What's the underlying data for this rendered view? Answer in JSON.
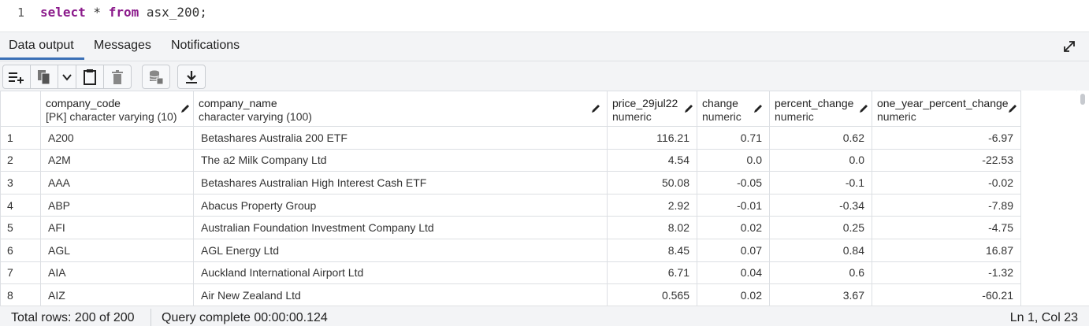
{
  "editor": {
    "line_number": "1",
    "kw_select": "select",
    "star": " * ",
    "kw_from": "from",
    "rest": " asx_200;"
  },
  "tabs": [
    {
      "label": "Data output",
      "active": true
    },
    {
      "label": "Messages",
      "active": false
    },
    {
      "label": "Notifications",
      "active": false
    }
  ],
  "columns": [
    {
      "name": "company_code",
      "type": "[PK] character varying (10)"
    },
    {
      "name": "company_name",
      "type": "character varying (100)"
    },
    {
      "name": "price_29jul22",
      "type": "numeric"
    },
    {
      "name": "change",
      "type": "numeric"
    },
    {
      "name": "percent_change",
      "type": "numeric"
    },
    {
      "name": "one_year_percent_change",
      "type": "numeric"
    }
  ],
  "rows": [
    [
      "1",
      "A200",
      "Betashares Australia 200 ETF",
      "116.21",
      "0.71",
      "0.62",
      "-6.97"
    ],
    [
      "2",
      "A2M",
      "The a2 Milk Company Ltd",
      "4.54",
      "0.0",
      "0.0",
      "-22.53"
    ],
    [
      "3",
      "AAA",
      "Betashares Australian High Interest Cash ETF",
      "50.08",
      "-0.05",
      "-0.1",
      "-0.02"
    ],
    [
      "4",
      "ABP",
      "Abacus Property Group",
      "2.92",
      "-0.01",
      "-0.34",
      "-7.89"
    ],
    [
      "5",
      "AFI",
      "Australian Foundation Investment Company Ltd",
      "8.02",
      "0.02",
      "0.25",
      "-4.75"
    ],
    [
      "6",
      "AGL",
      "AGL Energy Ltd",
      "8.45",
      "0.07",
      "0.84",
      "16.87"
    ],
    [
      "7",
      "AIA",
      "Auckland International Airport Ltd",
      "6.71",
      "0.04",
      "0.6",
      "-1.32"
    ],
    [
      "8",
      "AIZ",
      "Air New Zealand Ltd",
      "0.565",
      "0.02",
      "3.67",
      "-60.21"
    ]
  ],
  "status": {
    "total_rows": "Total rows: 200 of 200",
    "query": "Query complete 00:00:00.124",
    "position": "Ln 1, Col 23"
  },
  "colors": {
    "accent": "#3a6fb6",
    "keyword": "#8b1a8b"
  }
}
